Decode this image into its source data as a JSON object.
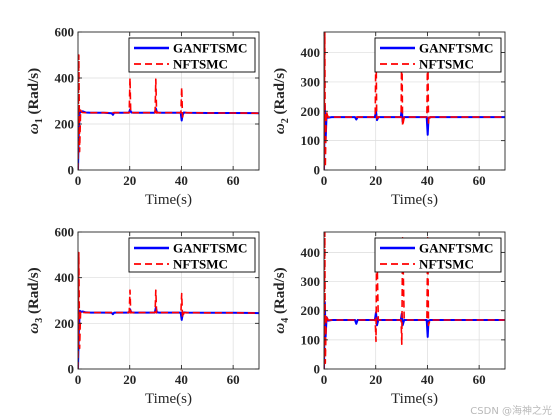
{
  "watermark": "CSDN @海神之光",
  "colors": {
    "ganftsmc": "#0000ff",
    "nftsmc": "#ff0000",
    "grid": "#dcdcdc",
    "axis": "#262626"
  },
  "chart_data": [
    {
      "type": "line",
      "ylabel": "ω1 (Rad/s)",
      "ylabel_symbol": "ω",
      "ylabel_sub": "1",
      "ylabel_unit": "(Rad/s)",
      "xlabel": "Time(s)",
      "xlim": [
        0,
        70
      ],
      "ylim": [
        0,
        600
      ],
      "xticks": [
        0,
        20,
        40,
        60
      ],
      "yticks": [
        0,
        200,
        400,
        600
      ],
      "grid": true,
      "legend_position": "top-right",
      "series": [
        {
          "name": "GANFTSMC",
          "style": "solid",
          "x": [
            0,
            0.3,
            0.7,
            1.2,
            1.8,
            3,
            5,
            10,
            13,
            13.5,
            14,
            19.7,
            20.1,
            20.6,
            21.5,
            29.7,
            30.1,
            30.6,
            31.5,
            39.7,
            40.1,
            40.4,
            40.9,
            42,
            50,
            60,
            70
          ],
          "y": [
            0,
            160,
            260,
            252,
            255,
            250,
            249,
            249,
            247,
            240,
            249,
            249,
            262,
            250,
            249,
            249,
            268,
            250,
            249,
            249,
            215,
            238,
            250,
            249,
            248,
            248,
            247
          ]
        },
        {
          "name": "NFTSMC",
          "style": "dashed",
          "x": [
            0,
            0.3,
            0.6,
            1.0,
            1.6,
            3,
            10,
            19.8,
            20.1,
            20.4,
            21,
            29.8,
            30.1,
            30.4,
            31,
            39.8,
            40.1,
            40.4,
            41,
            50,
            60,
            70
          ],
          "y": [
            0,
            500,
            80,
            260,
            250,
            249,
            249,
            249,
            400,
            248,
            249,
            249,
            395,
            248,
            249,
            249,
            360,
            230,
            249,
            248,
            248,
            247
          ]
        }
      ]
    },
    {
      "type": "line",
      "ylabel": "ω2 (Rad/s)",
      "ylabel_symbol": "ω",
      "ylabel_sub": "2",
      "ylabel_unit": "(Rad/s)",
      "xlabel": "Time(s)",
      "xlim": [
        0,
        70
      ],
      "ylim": [
        0,
        470
      ],
      "xticks": [
        0,
        20,
        40,
        60
      ],
      "yticks": [
        0,
        100,
        200,
        300,
        400
      ],
      "grid": true,
      "legend_position": "top-right",
      "series": [
        {
          "name": "GANFTSMC",
          "style": "solid",
          "x": [
            0,
            0.3,
            0.6,
            1.0,
            1.6,
            3,
            10,
            12,
            12.5,
            13,
            19.7,
            20.1,
            20.5,
            21,
            29.7,
            30.1,
            30.4,
            31,
            39.7,
            40.1,
            40.4,
            41,
            50,
            60,
            70
          ],
          "y": [
            0,
            220,
            100,
            190,
            178,
            180,
            180,
            180,
            172,
            180,
            180,
            200,
            170,
            180,
            180,
            210,
            165,
            180,
            180,
            120,
            175,
            180,
            180,
            180,
            180
          ]
        },
        {
          "name": "NFTSMC",
          "style": "dashed",
          "x": [
            0,
            0.3,
            0.5,
            0.9,
            1.5,
            3,
            10,
            19.8,
            20.1,
            20.4,
            21,
            29.8,
            30.1,
            30.4,
            31,
            39.8,
            40.1,
            40.4,
            41,
            50,
            60,
            70
          ],
          "y": [
            0,
            470,
            10,
            200,
            180,
            180,
            180,
            180,
            450,
            175,
            180,
            180,
            450,
            150,
            180,
            180,
            450,
            160,
            180,
            180,
            180,
            180
          ]
        }
      ]
    },
    {
      "type": "line",
      "ylabel": "ω3 (Rad/s)",
      "ylabel_symbol": "ω",
      "ylabel_sub": "3",
      "ylabel_unit": "(Rad/s)",
      "xlabel": "Time(s)",
      "xlim": [
        0,
        70
      ],
      "ylim": [
        0,
        600
      ],
      "xticks": [
        0,
        20,
        40,
        60
      ],
      "yticks": [
        0,
        200,
        400,
        600
      ],
      "grid": true,
      "legend_position": "top-right",
      "series": [
        {
          "name": "GANFTSMC",
          "style": "solid",
          "x": [
            0,
            0.3,
            0.7,
            1.2,
            1.8,
            3,
            5,
            10,
            13,
            13.5,
            14,
            19.7,
            20.1,
            20.6,
            21.5,
            29.7,
            30.1,
            30.6,
            31.5,
            39.7,
            40.1,
            40.4,
            40.9,
            42,
            50,
            60,
            70
          ],
          "y": [
            0,
            160,
            255,
            250,
            252,
            248,
            247,
            247,
            246,
            240,
            247,
            247,
            262,
            248,
            247,
            247,
            268,
            248,
            247,
            247,
            215,
            235,
            248,
            247,
            246,
            246,
            245
          ]
        },
        {
          "name": "NFTSMC",
          "style": "dashed",
          "x": [
            0,
            0.3,
            0.6,
            1.0,
            1.6,
            3,
            10,
            19.8,
            20.1,
            20.4,
            21,
            29.8,
            30.1,
            30.4,
            31,
            39.8,
            40.1,
            40.4,
            41,
            50,
            60,
            70
          ],
          "y": [
            0,
            510,
            90,
            255,
            248,
            247,
            247,
            247,
            345,
            246,
            247,
            247,
            345,
            246,
            247,
            247,
            330,
            225,
            247,
            246,
            246,
            245
          ]
        }
      ]
    },
    {
      "type": "line",
      "ylabel": "ω4 (Rad/s)",
      "ylabel_symbol": "ω",
      "ylabel_sub": "4",
      "ylabel_unit": "(Rad/s)",
      "xlabel": "Time(s)",
      "xlim": [
        0,
        70
      ],
      "ylim": [
        0,
        470
      ],
      "xticks": [
        0,
        20,
        40,
        60
      ],
      "yticks": [
        0,
        100,
        200,
        300,
        400
      ],
      "grid": true,
      "legend_position": "top-right",
      "series": [
        {
          "name": "GANFTSMC",
          "style": "solid",
          "x": [
            0,
            0.3,
            0.6,
            1.0,
            1.6,
            3,
            10,
            12,
            12.5,
            13,
            19.7,
            20.1,
            20.5,
            21,
            29.7,
            30.1,
            30.4,
            31,
            39.7,
            40.1,
            40.4,
            41,
            50,
            60,
            70
          ],
          "y": [
            0,
            230,
            110,
            178,
            166,
            168,
            168,
            168,
            155,
            168,
            168,
            195,
            150,
            168,
            168,
            190,
            150,
            168,
            168,
            110,
            165,
            168,
            168,
            168,
            168
          ]
        },
        {
          "name": "NFTSMC",
          "style": "dashed",
          "x": [
            0,
            0.3,
            0.5,
            0.9,
            1.5,
            3,
            10,
            19.8,
            20.1,
            20.4,
            21,
            29.8,
            30.1,
            30.4,
            31,
            39.8,
            40.1,
            40.4,
            41,
            50,
            60,
            70
          ],
          "y": [
            0,
            470,
            20,
            185,
            168,
            168,
            168,
            168,
            95,
            450,
            168,
            168,
            85,
            450,
            168,
            168,
            450,
            150,
            168,
            168,
            168,
            168
          ]
        }
      ]
    }
  ]
}
